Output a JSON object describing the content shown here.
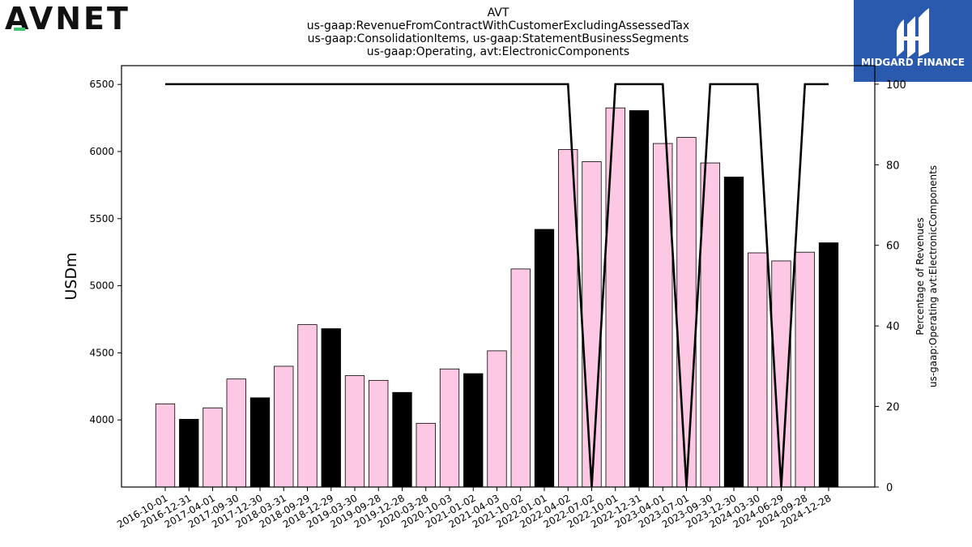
{
  "brand": {
    "left_logo_text": "AVNET",
    "right_logo_text": "MIDGARD FINANCE",
    "right_logo_bg": "#2a5aad",
    "avnet_accent": "#3cc36b"
  },
  "chart_data": {
    "type": "bar",
    "title_lines": [
      "AVT",
      "us-gaap:RevenueFromContractWithCustomerExcludingAssessedTax",
      "us-gaap:ConsolidationItems, us-gaap:StatementBusinessSegments",
      "us-gaap:Operating, avt:ElectronicComponents"
    ],
    "ylabel": "USDm",
    "y2label_lines": [
      "Percentage of Revenues",
      "us-gaap:Operating avt:ElectronicComponents"
    ],
    "ylim": [
      3500,
      6640
    ],
    "yticks": [
      4000,
      4500,
      5000,
      5500,
      6000,
      6500
    ],
    "y2lim": [
      0,
      104.6
    ],
    "y2ticks": [
      0,
      20,
      40,
      60,
      80,
      100
    ],
    "categories": [
      "2016-10-01",
      "2016-12-31",
      "2017-04-01",
      "2017-09-30",
      "2017-12-30",
      "2018-03-31",
      "2018-09-29",
      "2018-12-29",
      "2019-03-30",
      "2019-09-28",
      "2019-12-28",
      "2020-03-28",
      "2020-10-03",
      "2021-01-02",
      "2021-04-03",
      "2021-10-02",
      "2022-01-01",
      "2022-04-02",
      "2022-07-02",
      "2022-10-01",
      "2022-12-31",
      "2023-04-01",
      "2023-07-01",
      "2023-09-30",
      "2023-12-30",
      "2024-03-30",
      "2024-06-29",
      "2024-09-28",
      "2024-12-28"
    ],
    "values": [
      4120,
      4005,
      4090,
      4305,
      4165,
      4400,
      4710,
      4680,
      4330,
      4295,
      4205,
      3975,
      4380,
      4345,
      4515,
      5125,
      5420,
      6015,
      5925,
      6325,
      6305,
      6060,
      6105,
      5915,
      5810,
      5245,
      5185,
      5250,
      5320
    ],
    "bar_colors": [
      "#fcc8e4",
      "#000000",
      "#fcc8e4",
      "#fcc8e4",
      "#000000",
      "#fcc8e4",
      "#fcc8e4",
      "#000000",
      "#fcc8e4",
      "#fcc8e4",
      "#000000",
      "#fcc8e4",
      "#fcc8e4",
      "#000000",
      "#fcc8e4",
      "#fcc8e4",
      "#000000",
      "#fcc8e4",
      "#fcc8e4",
      "#fcc8e4",
      "#000000",
      "#fcc8e4",
      "#fcc8e4",
      "#fcc8e4",
      "#000000",
      "#fcc8e4",
      "#fcc8e4",
      "#fcc8e4",
      "#000000"
    ],
    "percentage": [
      100,
      100,
      100,
      100,
      100,
      100,
      100,
      100,
      100,
      100,
      100,
      100,
      100,
      100,
      100,
      100,
      100,
      100,
      0,
      100,
      100,
      100,
      0,
      100,
      100,
      100,
      0,
      100,
      100
    ],
    "line_color": "#000000",
    "grid": false
  }
}
